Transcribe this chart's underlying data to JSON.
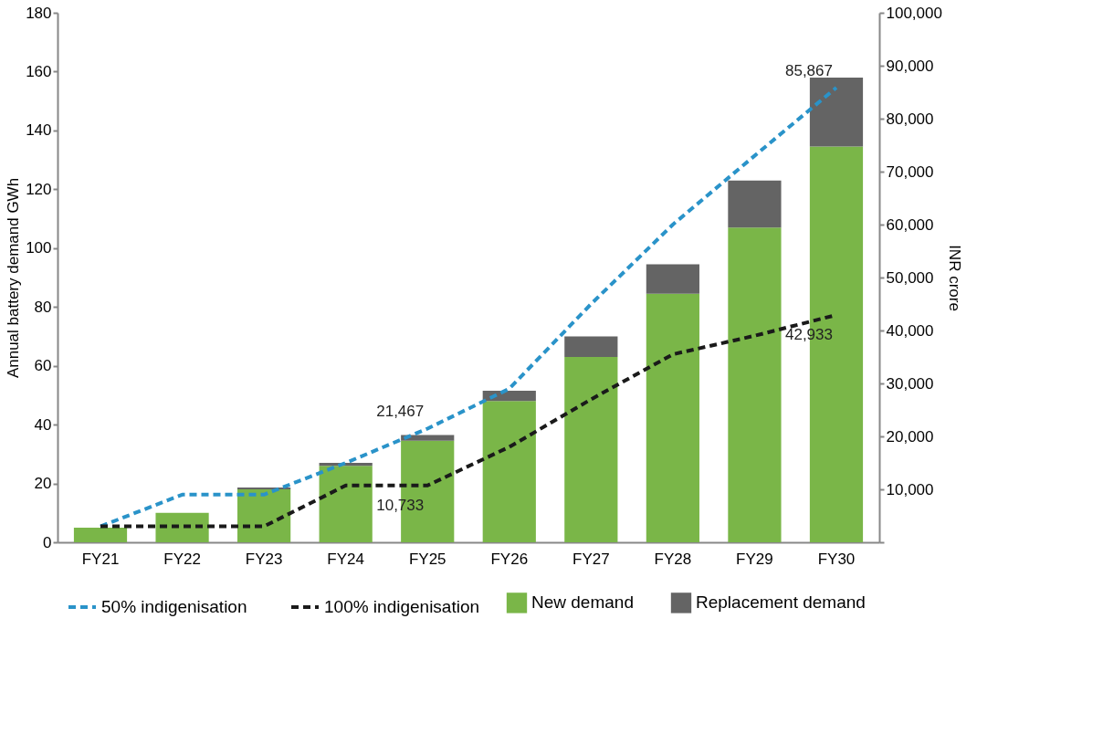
{
  "chart_data": {
    "type": "bar",
    "stacked": true,
    "ylabel": "Annual battery demand GWh",
    "y2label": "INR crore",
    "categories": [
      "FY21",
      "FY22",
      "FY23",
      "FY24",
      "FY25",
      "FY26",
      "FY27",
      "FY28",
      "FY29",
      "FY30"
    ],
    "series": [
      {
        "name": "New demand",
        "color": "#7ab648",
        "values": [
          5,
          10,
          18,
          26,
          34.5,
          48,
          63,
          84.5,
          107,
          134.5
        ]
      },
      {
        "name": "Replacement demand",
        "color": "#646464",
        "values": [
          0,
          0,
          0.6,
          1,
          2,
          3.5,
          7,
          10,
          16,
          23.5
        ]
      },
      {
        "name": "50% indigenisation",
        "type": "line",
        "axis": "y2",
        "line_style": "dashed",
        "color": "#2a93c9",
        "values": [
          3000,
          9000,
          9000,
          15000,
          21467,
          29000,
          45000,
          60000,
          73000,
          85867
        ],
        "value_labels": [
          null,
          null,
          null,
          null,
          "21,467",
          null,
          null,
          null,
          null,
          "85,867"
        ]
      },
      {
        "name": "100% indigenisation",
        "type": "line",
        "axis": "y2",
        "line_style": "dashed",
        "color": "#1a1a1a",
        "values": [
          3000,
          3000,
          3000,
          10733,
          10733,
          18000,
          27000,
          35500,
          39000,
          42933
        ],
        "value_labels": [
          null,
          null,
          null,
          null,
          "10,733",
          null,
          null,
          null,
          null,
          "42,933"
        ]
      }
    ],
    "ylim": [
      0,
      180
    ],
    "yticks": [
      0,
      20,
      40,
      60,
      80,
      100,
      120,
      140,
      160,
      180
    ],
    "y2lim": [
      0,
      100000
    ],
    "y2ticks": [
      {
        "value": 0,
        "label": null
      },
      {
        "value": 10000,
        "label": "10,000"
      },
      {
        "value": 20000,
        "label": "20,000"
      },
      {
        "value": 30000,
        "label": "30,000"
      },
      {
        "value": 40000,
        "label": "40,000"
      },
      {
        "value": 50000,
        "label": "50,000"
      },
      {
        "value": 60000,
        "label": "60,000"
      },
      {
        "value": 70000,
        "label": "70,000"
      },
      {
        "value": 80000,
        "label": "80,000"
      },
      {
        "value": 90000,
        "label": "90,000"
      },
      {
        "value": 100000,
        "label": "100,000"
      }
    ],
    "grid": false,
    "legend": "bottom"
  }
}
